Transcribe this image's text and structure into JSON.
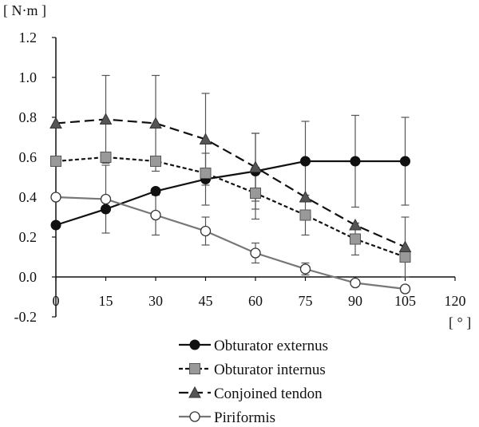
{
  "chart_data": {
    "type": "line",
    "title": "",
    "ylabel": "[ N·m ]",
    "xlabel": "[ ° ]",
    "x": [
      0,
      15,
      30,
      45,
      60,
      75,
      90,
      105
    ],
    "xticks": [
      0,
      15,
      30,
      45,
      60,
      75,
      90,
      105,
      120
    ],
    "yticks": [
      "-0.2",
      "0.0",
      "0.2",
      "0.4",
      "0.6",
      "0.8",
      "1.0",
      "1.2"
    ],
    "xlim": [
      0,
      120
    ],
    "ylim": [
      -0.2,
      1.2
    ],
    "grid": false,
    "legend_position": "bottom",
    "series": [
      {
        "name": "Obturator externus",
        "marker": "circle-filled",
        "line": "solid",
        "line_color": "#111111",
        "values": [
          0.26,
          0.34,
          0.43,
          0.49,
          0.53,
          0.58,
          0.58,
          0.58
        ],
        "errors": [
          0.0,
          0.0,
          0.0,
          0.13,
          0.19,
          0.2,
          0.23,
          0.22
        ]
      },
      {
        "name": "Obturator internus",
        "marker": "square",
        "line": "dotted",
        "line_color": "#111111",
        "values": [
          0.58,
          0.6,
          0.58,
          0.52,
          0.42,
          0.31,
          0.19,
          0.1
        ],
        "errors": [
          0.0,
          0.0,
          0.0,
          0.0,
          0.13,
          0.1,
          0.08,
          0.0
        ]
      },
      {
        "name": "Conjoined tendon",
        "marker": "triangle",
        "line": "dashed",
        "line_color": "#111111",
        "values": [
          0.77,
          0.79,
          0.77,
          0.69,
          0.55,
          0.4,
          0.26,
          0.15
        ],
        "errors": [
          0.0,
          0.22,
          0.24,
          0.23,
          0.17,
          0.0,
          0.0,
          0.15
        ]
      },
      {
        "name": "Piriformis",
        "marker": "circle-open",
        "line": "solid",
        "line_color": "#777777",
        "values": [
          0.4,
          0.39,
          0.31,
          0.23,
          0.12,
          0.04,
          -0.03,
          -0.06
        ],
        "errors": [
          0.0,
          0.17,
          0.1,
          0.07,
          0.05,
          0.03,
          0.0,
          0.0
        ]
      }
    ]
  }
}
